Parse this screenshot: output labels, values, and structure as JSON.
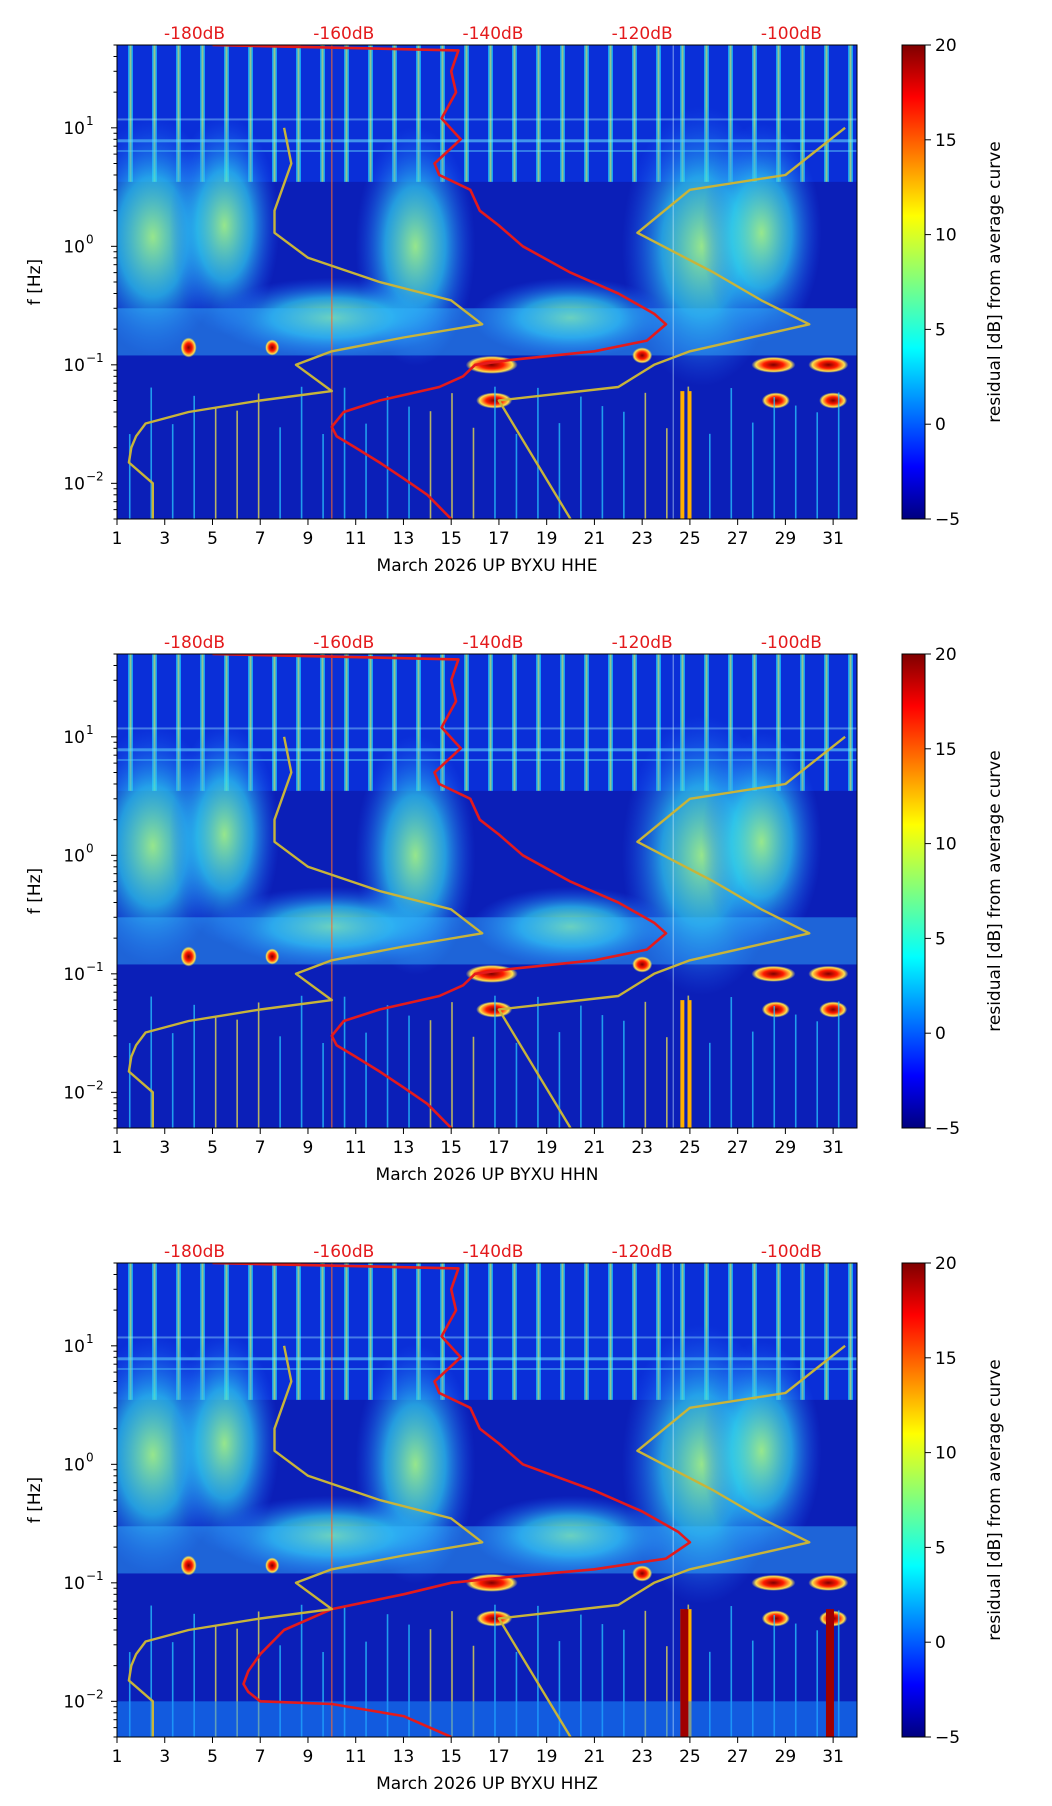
{
  "figure": {
    "colors": {
      "red": "#e41a1c",
      "gold": "#c8b43a",
      "axis": "#000000"
    }
  },
  "chart_data": [
    {
      "type": "heatmap",
      "channel": "HHE",
      "xlabel": "March 2026 UP BYXU  HHE",
      "ylabel": "f [Hz]",
      "x_ticks": [
        "1",
        "3",
        "5",
        "7",
        "9",
        "11",
        "13",
        "15",
        "17",
        "19",
        "21",
        "23",
        "25",
        "27",
        "29",
        "31"
      ],
      "x_tick_values": [
        1,
        3,
        5,
        7,
        9,
        11,
        13,
        15,
        17,
        19,
        21,
        23,
        25,
        27,
        29,
        31
      ],
      "xlim": [
        1,
        32
      ],
      "y_ticks": [
        {
          "label": "10",
          "exp": "1",
          "value": 10
        },
        {
          "label": "10",
          "exp": "0",
          "value": 1
        },
        {
          "label": "10",
          "exp": "−1",
          "value": 0.1
        },
        {
          "label": "10",
          "exp": "−2",
          "value": 0.01
        }
      ],
      "ylim": [
        0.005,
        50
      ],
      "top_labels": [
        "-180dB",
        "-160dB",
        "-140dB",
        "-120dB",
        "-100dB"
      ],
      "top_label_days": [
        4.25,
        10.5,
        16.75,
        23,
        29.25
      ],
      "colorbar": {
        "label": "residual [dB] from average curve",
        "ticks": [
          "20",
          "15",
          "10",
          "5",
          "0",
          "−5"
        ],
        "tick_values": [
          20,
          15,
          10,
          5,
          0,
          -5
        ],
        "range": [
          -5,
          20
        ]
      },
      "series": [
        {
          "name": "median PSD (red)",
          "points": [
            [
              5,
              50
            ],
            [
              15.3,
              45
            ],
            [
              15,
              30
            ],
            [
              15.2,
              20
            ],
            [
              14.6,
              12
            ],
            [
              15.4,
              8
            ],
            [
              14.3,
              5
            ],
            [
              14.5,
              4
            ],
            [
              15.8,
              3
            ],
            [
              16.2,
              2
            ],
            [
              17,
              1.5
            ],
            [
              18,
              1
            ],
            [
              20,
              0.6
            ],
            [
              22,
              0.4
            ],
            [
              23.5,
              0.27
            ],
            [
              24,
              0.22
            ],
            [
              23.2,
              0.16
            ],
            [
              21,
              0.13
            ],
            [
              17.5,
              0.11
            ],
            [
              16,
              0.1
            ],
            [
              15.5,
              0.08
            ],
            [
              14.5,
              0.065
            ],
            [
              12,
              0.05
            ],
            [
              10.5,
              0.04
            ],
            [
              10,
              0.03
            ],
            [
              10.2,
              0.025
            ],
            [
              11,
              0.02
            ],
            [
              12,
              0.015
            ],
            [
              13,
              0.011
            ],
            [
              14,
              0.008
            ],
            [
              15,
              0.005
            ]
          ]
        },
        {
          "name": "NLNM/NHNM (gold)",
          "points": [
            [
              8,
              10
            ],
            [
              8.3,
              5
            ],
            [
              7.6,
              2
            ],
            [
              7.6,
              1.3
            ],
            [
              9,
              0.8
            ],
            [
              12,
              0.5
            ],
            [
              15,
              0.35
            ],
            [
              16.3,
              0.22
            ],
            [
              13,
              0.17
            ],
            [
              10,
              0.13
            ],
            [
              8.5,
              0.1
            ],
            [
              10,
              0.06
            ],
            [
              7,
              0.05
            ],
            [
              4,
              0.04
            ],
            [
              2.2,
              0.032
            ],
            [
              1.8,
              0.025
            ],
            [
              1.6,
              0.02
            ],
            [
              1.5,
              0.015
            ],
            [
              2.5,
              0.01
            ],
            [
              2.5,
              0.005
            ]
          ]
        },
        {
          "name": "NHNM (gold)",
          "points": [
            [
              20,
              0.005
            ],
            [
              17,
              0.05
            ],
            [
              22,
              0.065
            ],
            [
              23.5,
              0.1
            ],
            [
              25,
              0.13
            ],
            [
              30,
              0.22
            ],
            [
              28,
              0.35
            ],
            [
              26,
              0.6
            ],
            [
              22.8,
              1.3
            ],
            [
              25,
              3
            ],
            [
              29,
              4
            ],
            [
              31.5,
              10
            ]
          ]
        }
      ]
    },
    {
      "type": "heatmap",
      "channel": "HHN",
      "xlabel": "March 2026 UP BYXU  HHN",
      "ylabel": "f [Hz]",
      "x_ticks": [
        "1",
        "3",
        "5",
        "7",
        "9",
        "11",
        "13",
        "15",
        "17",
        "19",
        "21",
        "23",
        "25",
        "27",
        "29",
        "31"
      ],
      "x_tick_values": [
        1,
        3,
        5,
        7,
        9,
        11,
        13,
        15,
        17,
        19,
        21,
        23,
        25,
        27,
        29,
        31
      ],
      "xlim": [
        1,
        32
      ],
      "y_ticks": [
        {
          "label": "10",
          "exp": "1",
          "value": 10
        },
        {
          "label": "10",
          "exp": "0",
          "value": 1
        },
        {
          "label": "10",
          "exp": "−1",
          "value": 0.1
        },
        {
          "label": "10",
          "exp": "−2",
          "value": 0.01
        }
      ],
      "ylim": [
        0.005,
        50
      ],
      "top_labels": [
        "-180dB",
        "-160dB",
        "-140dB",
        "-120dB",
        "-100dB"
      ],
      "top_label_days": [
        4.25,
        10.5,
        16.75,
        23,
        29.25
      ],
      "colorbar": {
        "label": "residual [dB] from average curve",
        "ticks": [
          "20",
          "15",
          "10",
          "5",
          "0",
          "−5"
        ],
        "tick_values": [
          20,
          15,
          10,
          5,
          0,
          -5
        ],
        "range": [
          -5,
          20
        ]
      },
      "series": [
        {
          "name": "median PSD (red)",
          "points": [
            [
              5,
              50
            ],
            [
              15.3,
              45
            ],
            [
              15,
              30
            ],
            [
              15.2,
              20
            ],
            [
              14.6,
              12
            ],
            [
              15.4,
              8
            ],
            [
              14.3,
              5
            ],
            [
              14.5,
              4
            ],
            [
              15.8,
              3
            ],
            [
              16.2,
              2
            ],
            [
              17,
              1.5
            ],
            [
              18,
              1
            ],
            [
              20,
              0.6
            ],
            [
              22,
              0.4
            ],
            [
              23.5,
              0.27
            ],
            [
              24,
              0.22
            ],
            [
              23.2,
              0.16
            ],
            [
              21,
              0.13
            ],
            [
              17.5,
              0.11
            ],
            [
              16,
              0.1
            ],
            [
              15.5,
              0.08
            ],
            [
              14.5,
              0.065
            ],
            [
              12,
              0.05
            ],
            [
              10.5,
              0.04
            ],
            [
              10,
              0.03
            ],
            [
              10.2,
              0.025
            ],
            [
              11,
              0.02
            ],
            [
              12,
              0.015
            ],
            [
              13,
              0.011
            ],
            [
              14,
              0.008
            ],
            [
              15,
              0.005
            ]
          ]
        },
        {
          "name": "NLNM/NHNM (gold)",
          "points": [
            [
              8,
              10
            ],
            [
              8.3,
              5
            ],
            [
              7.6,
              2
            ],
            [
              7.6,
              1.3
            ],
            [
              9,
              0.8
            ],
            [
              12,
              0.5
            ],
            [
              15,
              0.35
            ],
            [
              16.3,
              0.22
            ],
            [
              13,
              0.17
            ],
            [
              10,
              0.13
            ],
            [
              8.5,
              0.1
            ],
            [
              10,
              0.06
            ],
            [
              7,
              0.05
            ],
            [
              4,
              0.04
            ],
            [
              2.2,
              0.032
            ],
            [
              1.8,
              0.025
            ],
            [
              1.6,
              0.02
            ],
            [
              1.5,
              0.015
            ],
            [
              2.5,
              0.01
            ],
            [
              2.5,
              0.005
            ]
          ]
        },
        {
          "name": "NHNM (gold)",
          "points": [
            [
              20,
              0.005
            ],
            [
              17,
              0.05
            ],
            [
              22,
              0.065
            ],
            [
              23.5,
              0.1
            ],
            [
              25,
              0.13
            ],
            [
              30,
              0.22
            ],
            [
              28,
              0.35
            ],
            [
              26,
              0.6
            ],
            [
              22.8,
              1.3
            ],
            [
              25,
              3
            ],
            [
              29,
              4
            ],
            [
              31.5,
              10
            ]
          ]
        }
      ]
    },
    {
      "type": "heatmap",
      "channel": "HHZ",
      "xlabel": "March 2026 UP BYXU  HHZ",
      "ylabel": "f [Hz]",
      "x_ticks": [
        "1",
        "3",
        "5",
        "7",
        "9",
        "11",
        "13",
        "15",
        "17",
        "19",
        "21",
        "23",
        "25",
        "27",
        "29",
        "31"
      ],
      "x_tick_values": [
        1,
        3,
        5,
        7,
        9,
        11,
        13,
        15,
        17,
        19,
        21,
        23,
        25,
        27,
        29,
        31
      ],
      "xlim": [
        1,
        32
      ],
      "y_ticks": [
        {
          "label": "10",
          "exp": "1",
          "value": 10
        },
        {
          "label": "10",
          "exp": "0",
          "value": 1
        },
        {
          "label": "10",
          "exp": "−1",
          "value": 0.1
        },
        {
          "label": "10",
          "exp": "−2",
          "value": 0.01
        }
      ],
      "ylim": [
        0.005,
        50
      ],
      "top_labels": [
        "-180dB",
        "-160dB",
        "-140dB",
        "-120dB",
        "-100dB"
      ],
      "top_label_days": [
        4.25,
        10.5,
        16.75,
        23,
        29.25
      ],
      "colorbar": {
        "label": "residual [dB] from average curve",
        "ticks": [
          "20",
          "15",
          "10",
          "5",
          "0",
          "−5"
        ],
        "tick_values": [
          20,
          15,
          10,
          5,
          0,
          -5
        ],
        "range": [
          -5,
          20
        ]
      },
      "series": [
        {
          "name": "median PSD (red)",
          "points": [
            [
              5,
              50
            ],
            [
              15.3,
              45
            ],
            [
              15,
              30
            ],
            [
              15.2,
              20
            ],
            [
              14.6,
              12
            ],
            [
              15.4,
              8
            ],
            [
              14.3,
              5
            ],
            [
              14.5,
              4
            ],
            [
              15.8,
              3
            ],
            [
              16.2,
              2
            ],
            [
              17,
              1.5
            ],
            [
              18,
              1
            ],
            [
              21,
              0.6
            ],
            [
              23,
              0.4
            ],
            [
              24.5,
              0.27
            ],
            [
              25,
              0.22
            ],
            [
              24,
              0.16
            ],
            [
              21,
              0.13
            ],
            [
              17,
              0.11
            ],
            [
              15,
              0.1
            ],
            [
              13,
              0.08
            ],
            [
              10,
              0.06
            ],
            [
              8,
              0.04
            ],
            [
              7,
              0.025
            ],
            [
              6.5,
              0.018
            ],
            [
              6.3,
              0.014
            ],
            [
              6.5,
              0.012
            ],
            [
              7,
              0.01
            ],
            [
              10,
              0.0095
            ],
            [
              13,
              0.0075
            ],
            [
              15,
              0.005
            ]
          ]
        },
        {
          "name": "NLNM/NHNM (gold)",
          "points": [
            [
              8,
              10
            ],
            [
              8.3,
              5
            ],
            [
              7.6,
              2
            ],
            [
              7.6,
              1.3
            ],
            [
              9,
              0.8
            ],
            [
              12,
              0.5
            ],
            [
              15,
              0.35
            ],
            [
              16.3,
              0.22
            ],
            [
              13,
              0.17
            ],
            [
              10,
              0.13
            ],
            [
              8.5,
              0.1
            ],
            [
              10,
              0.06
            ],
            [
              7,
              0.05
            ],
            [
              4,
              0.04
            ],
            [
              2.2,
              0.032
            ],
            [
              1.8,
              0.025
            ],
            [
              1.6,
              0.02
            ],
            [
              1.5,
              0.015
            ],
            [
              2.5,
              0.01
            ],
            [
              2.5,
              0.005
            ]
          ]
        },
        {
          "name": "NHNM (gold)",
          "points": [
            [
              20,
              0.005
            ],
            [
              17,
              0.05
            ],
            [
              22,
              0.065
            ],
            [
              23.5,
              0.1
            ],
            [
              25,
              0.13
            ],
            [
              30,
              0.22
            ],
            [
              28,
              0.35
            ],
            [
              26,
              0.6
            ],
            [
              22.8,
              1.3
            ],
            [
              25,
              3
            ],
            [
              29,
              4
            ],
            [
              31.5,
              10
            ]
          ]
        }
      ]
    }
  ]
}
